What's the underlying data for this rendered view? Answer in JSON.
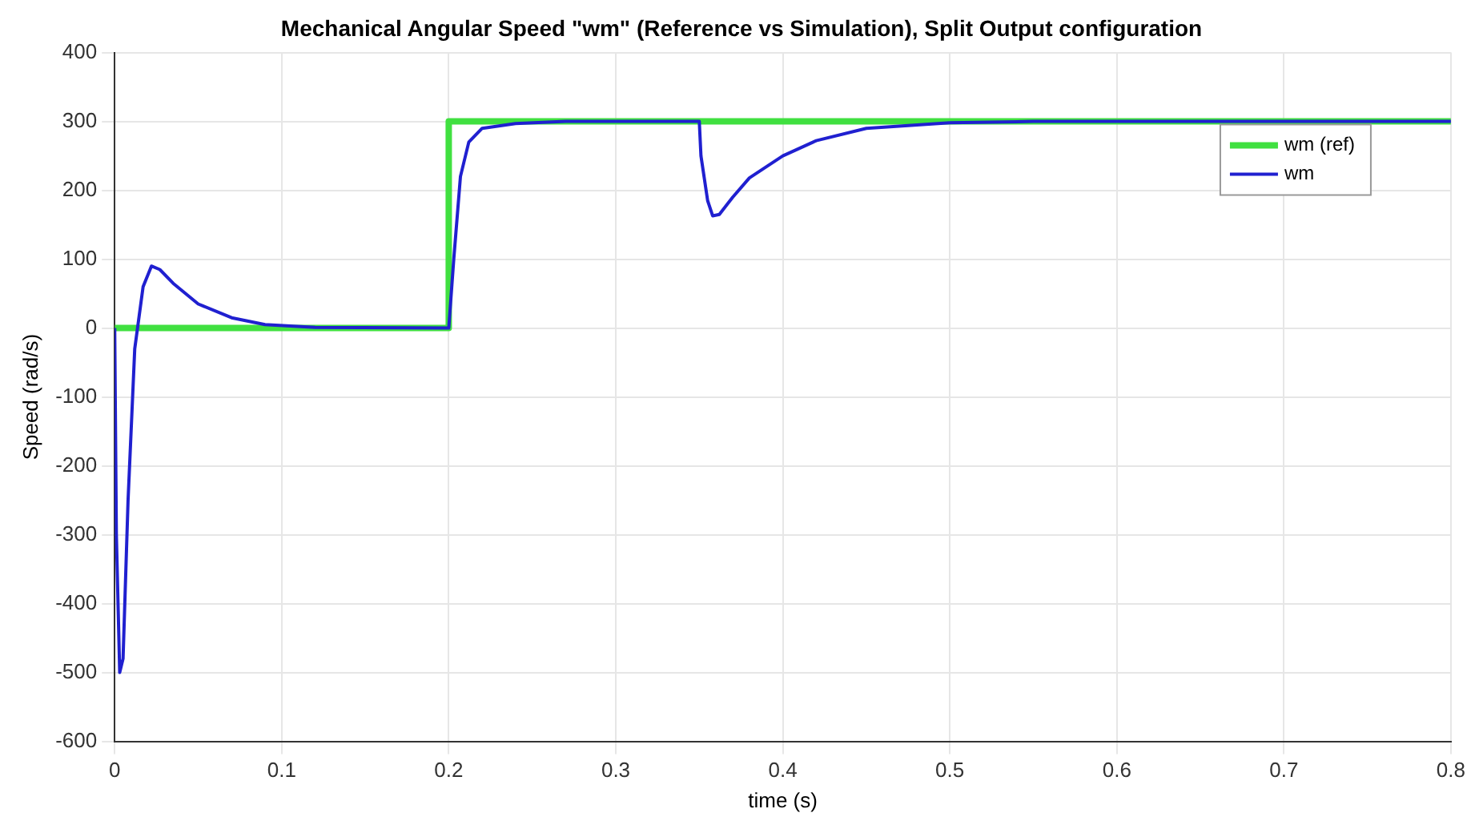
{
  "chart_data": {
    "type": "line",
    "title": "Mechanical Angular Speed \"wm\" (Reference vs Simulation), Split Output configuration",
    "xlabel": "time (s)",
    "ylabel": "Speed (rad/s)",
    "xlim": [
      0,
      0.8
    ],
    "xticks": [
      0,
      0.1,
      0.2,
      0.3,
      0.4,
      0.5,
      0.6,
      0.7,
      0.8
    ],
    "ylim": [
      -600,
      400
    ],
    "yticks": [
      -600,
      -500,
      -400,
      -300,
      -200,
      -100,
      0,
      100,
      200,
      300,
      400
    ],
    "grid": true,
    "legend": "top right",
    "marker": "none",
    "line_style": "solid",
    "series": [
      {
        "name": "wm (ref)",
        "color": "#40e040",
        "x": [
          0,
          0.2,
          0.2,
          0.8
        ],
        "values": [
          0,
          0,
          300,
          300
        ]
      },
      {
        "name": "wm",
        "color": "#2020d0",
        "x": [
          0,
          0.001,
          0.003,
          0.005,
          0.008,
          0.012,
          0.017,
          0.022,
          0.027,
          0.035,
          0.05,
          0.07,
          0.09,
          0.12,
          0.2,
          0.203,
          0.207,
          0.212,
          0.22,
          0.24,
          0.27,
          0.35,
          0.351,
          0.355,
          0.358,
          0.362,
          0.37,
          0.38,
          0.4,
          0.42,
          0.45,
          0.5,
          0.55,
          0.8
        ],
        "values": [
          0,
          -300,
          -500,
          -480,
          -250,
          -30,
          60,
          90,
          85,
          65,
          35,
          15,
          5,
          1,
          0,
          100,
          220,
          270,
          290,
          297,
          300,
          300,
          250,
          185,
          163,
          165,
          190,
          218,
          250,
          272,
          290,
          298,
          300,
          300
        ]
      }
    ]
  }
}
